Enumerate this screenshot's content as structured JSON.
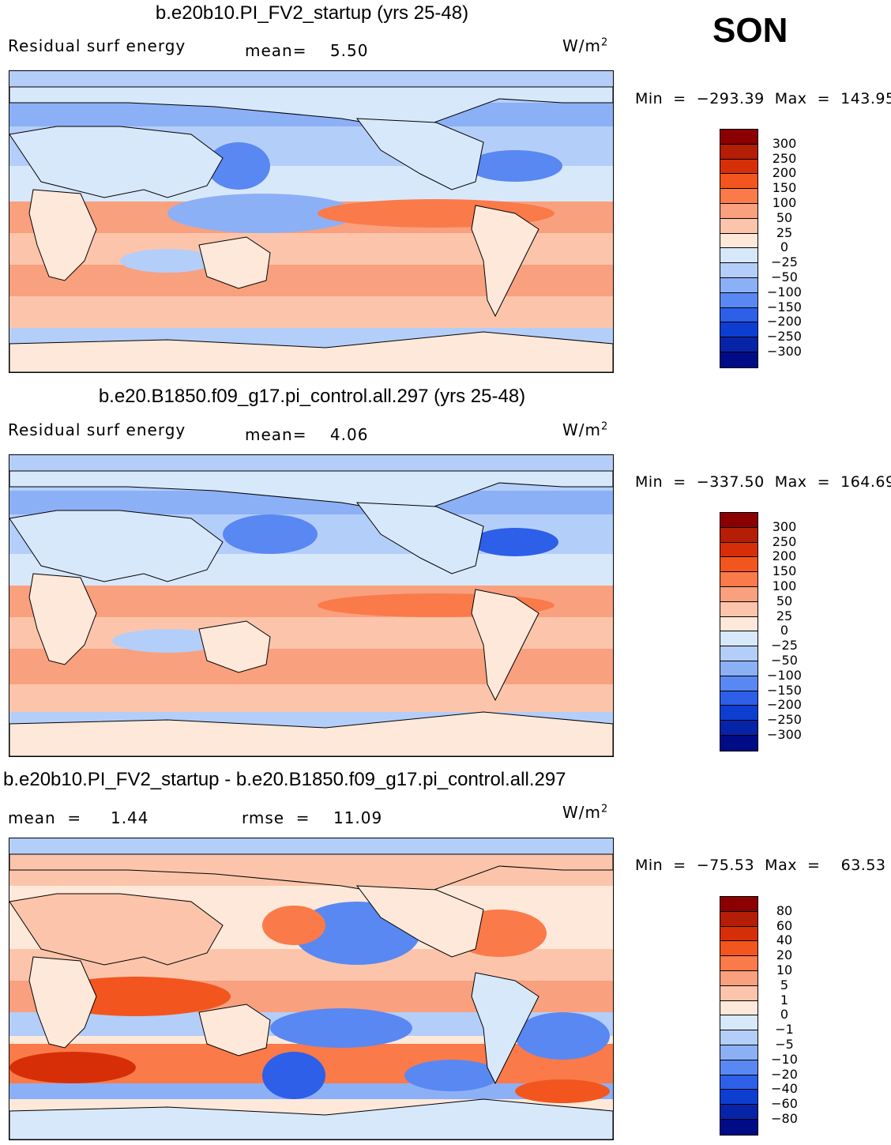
{
  "season": "SON",
  "units_label": "W/m",
  "units_sup": "2",
  "panels": [
    {
      "title": "b.e20b10.PI_FV2_startup (yrs 25-48)",
      "left_text": "Residual surf energy",
      "mid_text": "mean=    5.50",
      "min_max": "Min  =  −293.39  Max  =  143.95",
      "levels": [
        "300",
        "250",
        "200",
        "150",
        "100",
        "50",
        "25",
        "0",
        "−25",
        "−50",
        "−100",
        "−150",
        "−200",
        "−250",
        "−300"
      ]
    },
    {
      "title": "b.e20.B1850.f09_g17.pi_control.all.297 (yrs 25-48)",
      "left_text": "Residual surf energy",
      "mid_text": "mean=    4.06",
      "min_max": "Min  =  −337.50  Max  =  164.69",
      "levels": [
        "300",
        "250",
        "200",
        "150",
        "100",
        "50",
        "25",
        "0",
        "−25",
        "−50",
        "−100",
        "−150",
        "−200",
        "−250",
        "−300"
      ]
    },
    {
      "title": "b.e20b10.PI_FV2_startup - b.e20.B1850.f09_g17.pi_control.all.297",
      "left_text": "mean  =     1.44",
      "mid_text": "rmse  =    11.09",
      "min_max": "Min  =  −75.53  Max  =    63.53",
      "levels": [
        "80",
        "60",
        "40",
        "20",
        "10",
        "5",
        "1",
        "0",
        "−1",
        "−5",
        "−10",
        "−20",
        "−40",
        "−60",
        "−80"
      ]
    }
  ],
  "palette": [
    "#8b0000",
    "#b41d06",
    "#d62f08",
    "#f2561e",
    "#fa7a4a",
    "#f9a07f",
    "#fcc5ab",
    "#fee8d9",
    "#d8e8fb",
    "#b4cefa",
    "#8cb0f6",
    "#5a88f2",
    "#2d5fe9",
    "#0c3ed2",
    "#0723a7",
    "#000b86"
  ]
}
